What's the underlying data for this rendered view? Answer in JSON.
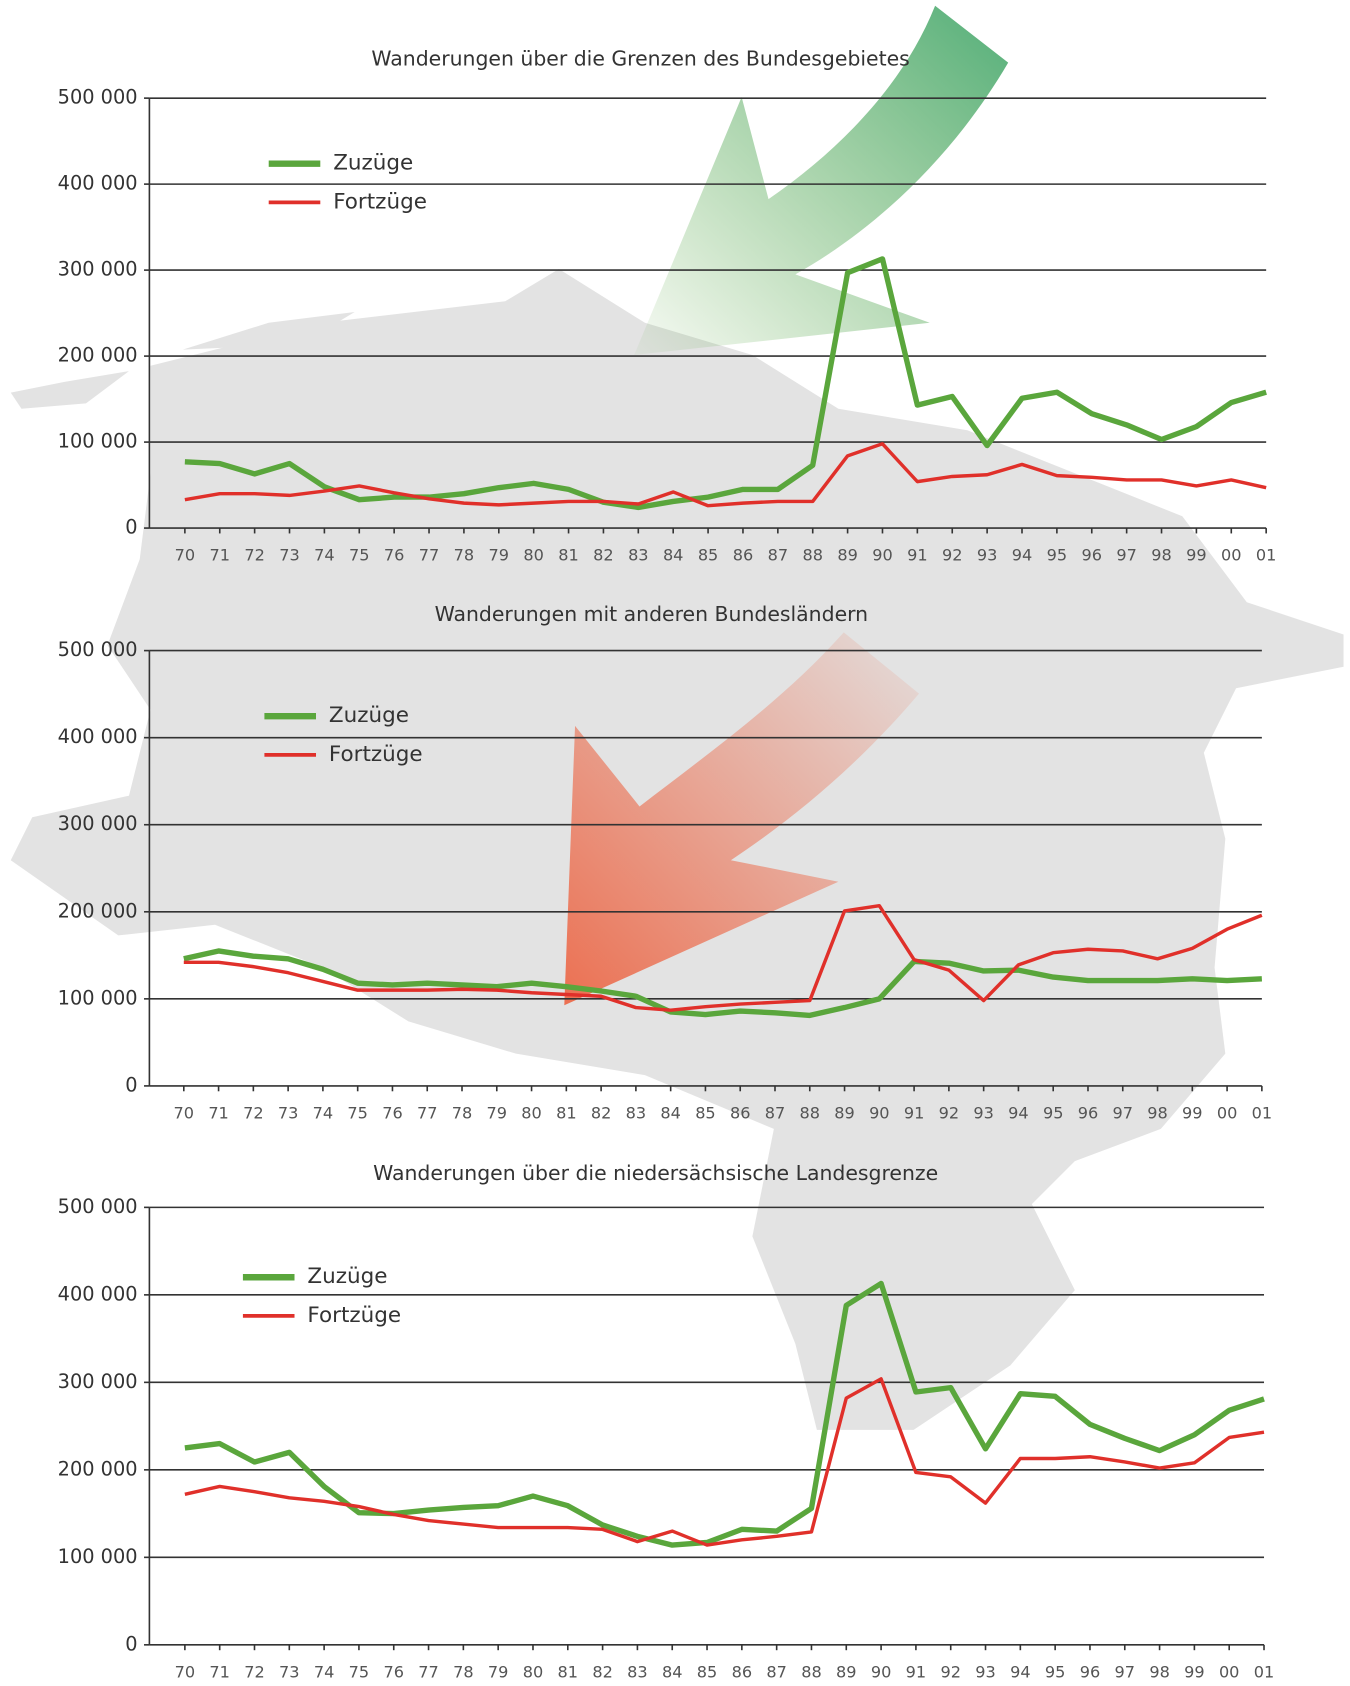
{
  "chart_data": [
    {
      "type": "line",
      "title": "Wanderungen über die Grenzen des Bundesgebietes",
      "categories": [
        "70",
        "71",
        "72",
        "73",
        "74",
        "75",
        "76",
        "77",
        "78",
        "79",
        "80",
        "81",
        "82",
        "83",
        "84",
        "85",
        "86",
        "87",
        "88",
        "89",
        "90",
        "91",
        "92",
        "93",
        "94",
        "95",
        "96",
        "97",
        "98",
        "99",
        "00",
        "01"
      ],
      "series": [
        {
          "name": "Zuzüge",
          "color": "#5aa63c",
          "values": [
            77000,
            75000,
            63000,
            75000,
            48000,
            33000,
            36000,
            36000,
            40000,
            47000,
            52000,
            45000,
            30000,
            24000,
            31000,
            36000,
            45000,
            45000,
            73000,
            297000,
            313000,
            143000,
            153000,
            96000,
            151000,
            158000,
            133000,
            120000,
            103000,
            118000,
            146000,
            158000
          ]
        },
        {
          "name": "Fortzüge",
          "color": "#e0302a",
          "values": [
            33000,
            40000,
            40000,
            38000,
            43000,
            49000,
            41000,
            34000,
            29000,
            27000,
            29000,
            31000,
            31000,
            28000,
            42000,
            26000,
            29000,
            31000,
            31000,
            84000,
            98000,
            54000,
            60000,
            62000,
            74000,
            61000,
            59000,
            56000,
            56000,
            49000,
            56000,
            47000
          ]
        }
      ],
      "ylim": [
        0,
        500000
      ],
      "yticks": [
        0,
        {
          "value": 100000,
          "label": "100 000"
        },
        {
          "value": 200000,
          "label": "200 000"
        },
        {
          "value": 300000,
          "label": "300 000"
        },
        {
          "value": 400000,
          "label": "400 000"
        },
        {
          "value": 500000,
          "label": "500 000"
        }
      ],
      "grid": true
    },
    {
      "type": "line",
      "title": "Wanderungen mit anderen Bundesländern",
      "categories": [
        "70",
        "71",
        "72",
        "73",
        "74",
        "75",
        "76",
        "77",
        "78",
        "79",
        "80",
        "81",
        "82",
        "83",
        "84",
        "85",
        "86",
        "87",
        "88",
        "89",
        "90",
        "91",
        "92",
        "93",
        "94",
        "95",
        "96",
        "97",
        "98",
        "99",
        "00",
        "01"
      ],
      "series": [
        {
          "name": "Zuzüge",
          "color": "#5aa63c",
          "values": [
            146000,
            155000,
            149000,
            146000,
            134000,
            118000,
            116000,
            118000,
            116000,
            114000,
            118000,
            114000,
            109000,
            103000,
            85000,
            82000,
            86000,
            84000,
            81000,
            90000,
            100000,
            143000,
            141000,
            132000,
            133000,
            125000,
            121000,
            121000,
            121000,
            123000,
            121000,
            123000
          ]
        },
        {
          "name": "Fortzüge",
          "color": "#e0302a",
          "values": [
            142000,
            142000,
            137000,
            130000,
            120000,
            110000,
            110000,
            110000,
            111000,
            110000,
            107000,
            105000,
            103000,
            90000,
            87000,
            91000,
            94000,
            96000,
            98000,
            201000,
            207000,
            145000,
            133000,
            98000,
            139000,
            153000,
            157000,
            155000,
            146000,
            158000,
            180000,
            196000
          ]
        }
      ],
      "ylim": [
        0,
        500000
      ],
      "yticks": [
        0,
        {
          "value": 100000,
          "label": "100 000"
        },
        {
          "value": 200000,
          "label": "200 000"
        },
        {
          "value": 300000,
          "label": "300 000"
        },
        {
          "value": 400000,
          "label": "400 000"
        },
        {
          "value": 500000,
          "label": "500 000"
        }
      ],
      "grid": true
    },
    {
      "type": "line",
      "title": "Wanderungen über die niedersächsische Landesgrenze",
      "categories": [
        "70",
        "71",
        "72",
        "73",
        "74",
        "75",
        "76",
        "77",
        "78",
        "79",
        "80",
        "81",
        "82",
        "83",
        "84",
        "85",
        "86",
        "87",
        "88",
        "89",
        "90",
        "91",
        "92",
        "93",
        "94",
        "95",
        "96",
        "97",
        "98",
        "99",
        "00",
        "01"
      ],
      "series": [
        {
          "name": "Zuzüge",
          "color": "#5aa63c",
          "values": [
            225000,
            230000,
            209000,
            220000,
            181000,
            151000,
            150000,
            154000,
            157000,
            159000,
            170000,
            159000,
            137000,
            124000,
            114000,
            117000,
            132000,
            130000,
            156000,
            388000,
            413000,
            289000,
            294000,
            224000,
            287000,
            284000,
            252000,
            236000,
            222000,
            240000,
            268000,
            281000
          ]
        },
        {
          "name": "Fortzüge",
          "color": "#e0302a",
          "values": [
            172000,
            181000,
            175000,
            168000,
            164000,
            158000,
            149000,
            142000,
            138000,
            134000,
            134000,
            134000,
            132000,
            118000,
            130000,
            114000,
            120000,
            124000,
            129000,
            282000,
            304000,
            197000,
            192000,
            162000,
            213000,
            213000,
            215000,
            209000,
            202000,
            208000,
            237000,
            243000
          ]
        }
      ],
      "ylim": [
        0,
        500000
      ],
      "yticks": [
        0,
        {
          "value": 100000,
          "label": "100 000"
        },
        {
          "value": 200000,
          "label": "200 000"
        },
        {
          "value": 300000,
          "label": "300 000"
        },
        {
          "value": 400000,
          "label": "400 000"
        },
        {
          "value": 500000,
          "label": "500 000"
        }
      ],
      "grid": true
    }
  ]
}
